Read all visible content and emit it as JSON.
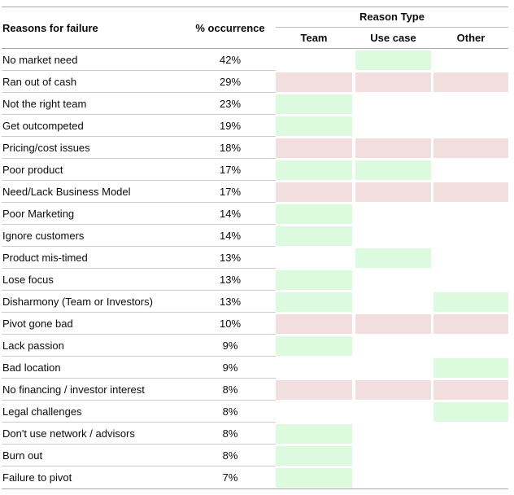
{
  "table": {
    "header": {
      "reasons_label": "Reasons for failure",
      "occurrence_label": "% occurrence",
      "reason_type_label": "Reason Type",
      "subcolumns": [
        "Team",
        "Use case",
        "Other"
      ]
    },
    "rows": [
      {
        "label": "No market need",
        "occurrence": "42%",
        "team": "",
        "use_case": "green",
        "other": ""
      },
      {
        "label": "Ran out of cash",
        "occurrence": "29%",
        "team": "pink",
        "use_case": "pink",
        "other": "pink"
      },
      {
        "label": "Not the right team",
        "occurrence": "23%",
        "team": "green",
        "use_case": "",
        "other": ""
      },
      {
        "label": "Get outcompeted",
        "occurrence": "19%",
        "team": "green",
        "use_case": "",
        "other": ""
      },
      {
        "label": "Pricing/cost issues",
        "occurrence": "18%",
        "team": "pink",
        "use_case": "pink",
        "other": "pink"
      },
      {
        "label": "Poor product",
        "occurrence": "17%",
        "team": "green",
        "use_case": "green",
        "other": ""
      },
      {
        "label": "Need/Lack Business Model",
        "occurrence": "17%",
        "team": "pink",
        "use_case": "pink",
        "other": "pink"
      },
      {
        "label": "Poor Marketing",
        "occurrence": "14%",
        "team": "green",
        "use_case": "",
        "other": ""
      },
      {
        "label": "Ignore customers",
        "occurrence": "14%",
        "team": "green",
        "use_case": "",
        "other": ""
      },
      {
        "label": "Product mis-timed",
        "occurrence": "13%",
        "team": "",
        "use_case": "green",
        "other": ""
      },
      {
        "label": "Lose focus",
        "occurrence": "13%",
        "team": "green",
        "use_case": "",
        "other": ""
      },
      {
        "label": "Disharmony (Team or Investors)",
        "occurrence": "13%",
        "team": "green",
        "use_case": "",
        "other": "green"
      },
      {
        "label": "Pivot gone bad",
        "occurrence": "10%",
        "team": "pink",
        "use_case": "pink",
        "other": "pink"
      },
      {
        "label": "Lack passion",
        "occurrence": "9%",
        "team": "green",
        "use_case": "",
        "other": ""
      },
      {
        "label": "Bad location",
        "occurrence": "9%",
        "team": "",
        "use_case": "",
        "other": "green"
      },
      {
        "label": "No financing / investor interest",
        "occurrence": "8%",
        "team": "pink",
        "use_case": "pink",
        "other": "pink"
      },
      {
        "label": "Legal challenges",
        "occurrence": "8%",
        "team": "",
        "use_case": "",
        "other": "green"
      },
      {
        "label": "Don't use network / advisors",
        "occurrence": "8%",
        "team": "green",
        "use_case": "",
        "other": ""
      },
      {
        "label": "Burn out",
        "occurrence": "8%",
        "team": "green",
        "use_case": "",
        "other": ""
      },
      {
        "label": "Failure to pivot",
        "occurrence": "7%",
        "team": "green",
        "use_case": "",
        "other": ""
      }
    ]
  },
  "colors": {
    "green_fill": "#dcfadd",
    "pink_fill": "#f2dede",
    "strong_line": "#a9a9a9",
    "light_line": "#cccccc",
    "text": "#0b0b0b"
  },
  "chart_data": {
    "type": "table",
    "title": "Reasons for failure",
    "columns": [
      "Reasons for failure",
      "% occurrence",
      "Team",
      "Use case",
      "Other"
    ],
    "group_header": "Reason Type",
    "rows": [
      [
        "No market need",
        42,
        "",
        "green",
        ""
      ],
      [
        "Ran out of cash",
        29,
        "pink",
        "pink",
        "pink"
      ],
      [
        "Not the right team",
        23,
        "green",
        "",
        ""
      ],
      [
        "Get outcompeted",
        19,
        "green",
        "",
        ""
      ],
      [
        "Pricing/cost issues",
        18,
        "pink",
        "pink",
        "pink"
      ],
      [
        "Poor product",
        17,
        "green",
        "green",
        ""
      ],
      [
        "Need/Lack Business Model",
        17,
        "pink",
        "pink",
        "pink"
      ],
      [
        "Poor Marketing",
        14,
        "green",
        "",
        ""
      ],
      [
        "Ignore customers",
        14,
        "green",
        "",
        ""
      ],
      [
        "Product mis-timed",
        13,
        "",
        "green",
        ""
      ],
      [
        "Lose focus",
        13,
        "green",
        "",
        ""
      ],
      [
        "Disharmony (Team or Investors)",
        13,
        "green",
        "",
        "green"
      ],
      [
        "Pivot gone bad",
        10,
        "pink",
        "pink",
        "pink"
      ],
      [
        "Lack passion",
        9,
        "green",
        "",
        ""
      ],
      [
        "Bad location",
        9,
        "",
        "",
        "green"
      ],
      [
        "No financing / investor interest",
        8,
        "pink",
        "pink",
        "pink"
      ],
      [
        "Legal challenges",
        8,
        "",
        "",
        "green"
      ],
      [
        "Don't use network / advisors",
        8,
        "green",
        "",
        ""
      ],
      [
        "Burn out",
        8,
        "green",
        "",
        ""
      ],
      [
        "Failure to pivot",
        7,
        "green",
        "",
        ""
      ]
    ],
    "cell_fill_colors": {
      "green": "#dcfadd",
      "pink": "#f2dede"
    },
    "value_unit": "%"
  }
}
